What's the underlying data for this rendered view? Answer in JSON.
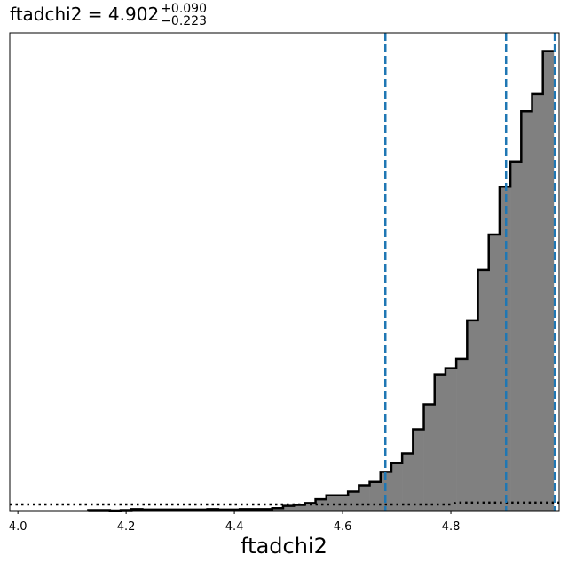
{
  "chart_data": {
    "type": "histogram",
    "title": {
      "param": "ftadchi2",
      "equals": " = ",
      "value": "4.902",
      "upper": "+0.090",
      "lower": "−0.223"
    },
    "xlabel": "ftadchi2",
    "ylabel": "",
    "xlim": [
      3.985,
      5.0
    ],
    "ylim": [
      0,
      1.0
    ],
    "x_ticks": [
      "4.0",
      "4.2",
      "4.4",
      "4.6",
      "4.8"
    ],
    "y_ticks": [],
    "bin_edges": [
      4.13,
      4.15,
      4.17,
      4.19,
      4.21,
      4.23,
      4.25,
      4.27,
      4.29,
      4.31,
      4.33,
      4.35,
      4.37,
      4.39,
      4.41,
      4.43,
      4.45,
      4.47,
      4.49,
      4.51,
      4.53,
      4.55,
      4.57,
      4.59,
      4.61,
      4.63,
      4.65,
      4.67,
      4.69,
      4.71,
      4.73,
      4.75,
      4.77,
      4.79,
      4.81,
      4.83,
      4.85,
      4.87,
      4.89,
      4.91,
      4.93,
      4.95,
      4.97,
      4.99
    ],
    "histogram_heights": [
      0.001,
      0.001,
      0.0,
      0.001,
      0.003,
      0.002,
      0.002,
      0.002,
      0.002,
      0.002,
      0.002,
      0.003,
      0.002,
      0.002,
      0.003,
      0.003,
      0.003,
      0.005,
      0.01,
      0.012,
      0.016,
      0.024,
      0.032,
      0.032,
      0.04,
      0.053,
      0.06,
      0.081,
      0.1,
      0.12,
      0.17,
      0.222,
      0.285,
      0.298,
      0.318,
      0.398,
      0.504,
      0.578,
      0.678,
      0.731,
      0.836,
      0.872,
      0.962
    ],
    "prior_line": {
      "x": [
        3.985,
        4.8,
        4.81,
        5.0
      ],
      "y": [
        0.013,
        0.013,
        0.017,
        0.017
      ]
    },
    "vertical_lines": [
      4.679,
      4.902,
      4.992
    ],
    "colors": {
      "fill": "#808080",
      "edge": "#000000",
      "vlines": "#1f77b4"
    }
  }
}
